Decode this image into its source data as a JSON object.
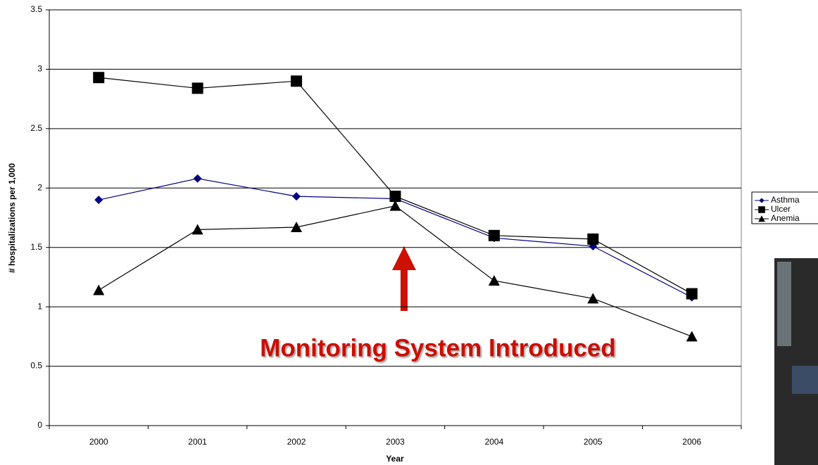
{
  "chart_data": {
    "type": "line",
    "xlabel": "Year",
    "ylabel": "# hospitalizations per 1,000",
    "categories": [
      "2000",
      "2001",
      "2002",
      "2003",
      "2004",
      "2005",
      "2006"
    ],
    "series": [
      {
        "name": "Asthma",
        "color": "#000080",
        "marker": "diamond",
        "values": [
          1.9,
          2.08,
          1.93,
          1.91,
          1.58,
          1.51,
          1.08
        ]
      },
      {
        "name": "Ulcer",
        "color": "#000000",
        "marker": "square",
        "values": [
          2.93,
          2.84,
          2.9,
          1.93,
          1.6,
          1.57,
          1.11
        ]
      },
      {
        "name": "Anemia",
        "color": "#000000",
        "marker": "triangle",
        "values": [
          1.14,
          1.65,
          1.67,
          1.85,
          1.22,
          1.07,
          0.75
        ]
      }
    ],
    "ylim": [
      0,
      3.5
    ],
    "yticks": [
      0,
      0.5,
      1,
      1.5,
      2,
      2.5,
      3,
      3.5
    ],
    "grid": true,
    "annotation": "Monitoring System Introduced"
  }
}
